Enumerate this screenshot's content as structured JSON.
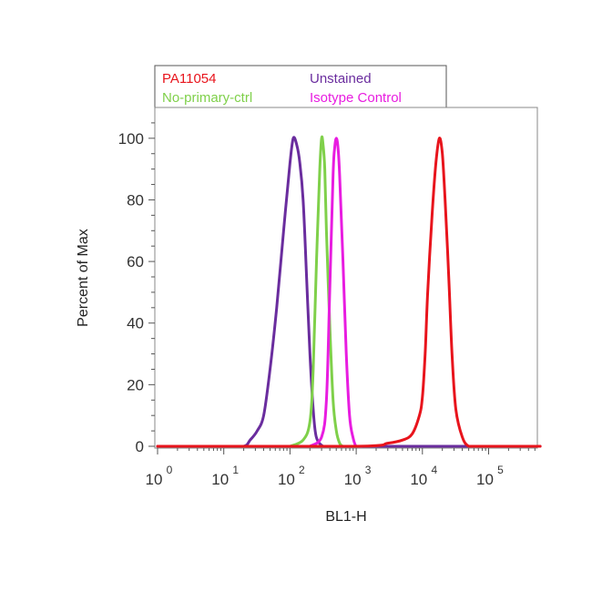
{
  "chart_data": {
    "type": "line",
    "title": "",
    "xlabel": "BL1-H",
    "ylabel": "Percent of Max",
    "x_scale": "log",
    "xlim": [
      1,
      1000000
    ],
    "ylim": [
      0,
      110
    ],
    "x_ticks": [
      {
        "base": "10",
        "exp": "0",
        "value": 1
      },
      {
        "base": "10",
        "exp": "1",
        "value": 10
      },
      {
        "base": "10",
        "exp": "2",
        "value": 100
      },
      {
        "base": "10",
        "exp": "3",
        "value": 1000
      },
      {
        "base": "10",
        "exp": "4",
        "value": 10000
      },
      {
        "base": "10",
        "exp": "5",
        "value": 100000
      }
    ],
    "y_ticks": [
      "0",
      "20",
      "40",
      "60",
      "80",
      "100"
    ],
    "y_tick_values": [
      0,
      20,
      40,
      60,
      80,
      100
    ],
    "grid": false,
    "legend_position": "top",
    "legend": [
      {
        "label": "PA11054",
        "color": "#e8141c"
      },
      {
        "label": "Unstained",
        "color": "#6a2d9e"
      },
      {
        "label": "No-primary-ctrl",
        "color": "#7fd04a"
      },
      {
        "label": "Isotype Control",
        "color": "#e81ce0"
      }
    ],
    "series": [
      {
        "name": "Unstained",
        "color": "#6a2d9e",
        "x": [
          1,
          10,
          20,
          25,
          32,
          40,
          50,
          63,
          80,
          100,
          112,
          126,
          141,
          158,
          178,
          200,
          224,
          250,
          316,
          400,
          1000,
          600000
        ],
        "y": [
          0,
          0,
          0,
          2,
          5,
          10,
          25,
          45,
          70,
          92,
          100,
          98,
          92,
          80,
          55,
          30,
          12,
          3,
          0,
          0,
          0,
          0
        ]
      },
      {
        "name": "No-primary-ctrl",
        "color": "#7fd04a",
        "x": [
          100,
          158,
          200,
          224,
          251,
          282,
          300,
          316,
          335,
          355,
          398,
          447,
          501,
          562,
          631,
          700
        ],
        "y": [
          0,
          2,
          8,
          25,
          60,
          90,
          100,
          98,
          90,
          70,
          40,
          15,
          5,
          1,
          0,
          0
        ]
      },
      {
        "name": "Isotype Control",
        "color": "#e81ce0",
        "x": [
          200,
          300,
          355,
          398,
          447,
          473,
          501,
          530,
          562,
          631,
          708,
          794,
          891,
          1000,
          1200
        ],
        "y": [
          0,
          3,
          15,
          50,
          88,
          97,
          100,
          97,
          88,
          60,
          30,
          10,
          3,
          0,
          0
        ]
      },
      {
        "name": "PA11054",
        "color": "#e8141c",
        "x": [
          1,
          1000,
          3000,
          5000,
          7000,
          9000,
          10000,
          11000,
          12000,
          14000,
          16000,
          18000,
          20000,
          22000,
          25000,
          28000,
          32000,
          40000,
          50000,
          70000,
          600000
        ],
        "y": [
          0,
          0,
          1,
          2,
          4,
          10,
          16,
          30,
          50,
          75,
          92,
          100,
          95,
          80,
          55,
          30,
          12,
          3,
          0,
          0,
          0
        ]
      }
    ]
  }
}
